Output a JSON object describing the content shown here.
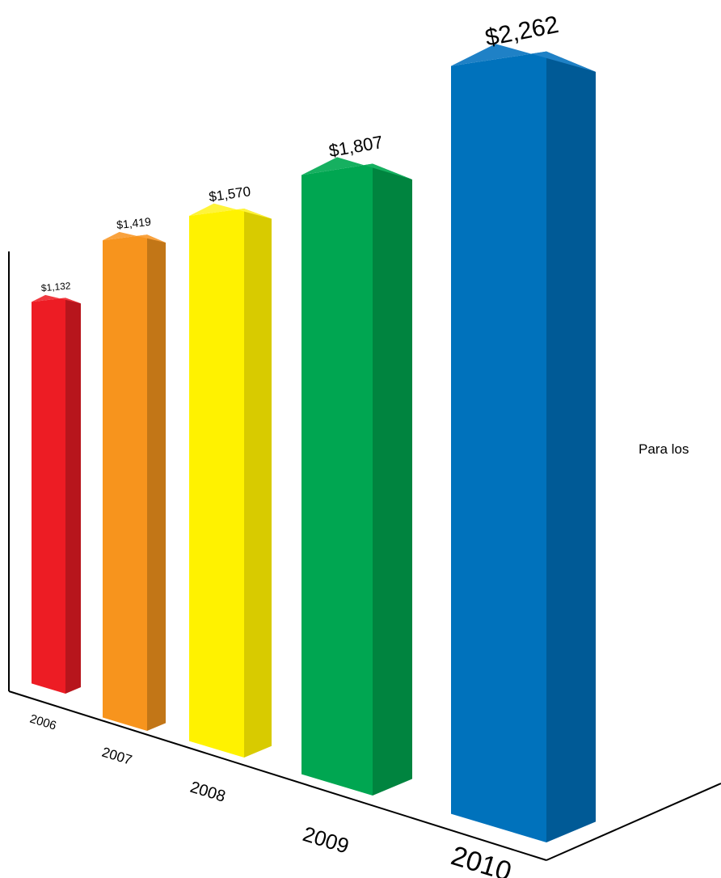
{
  "chart_data": {
    "type": "bar",
    "title": "",
    "xlabel": "",
    "ylabel": "",
    "categories": [
      "2006",
      "2007",
      "2008",
      "2009",
      "2010"
    ],
    "values": [
      1132,
      1419,
      1570,
      1807,
      2262
    ],
    "value_labels": [
      "$1,132",
      "$1,419",
      "$1,570",
      "$1,807",
      "$2,262"
    ],
    "colors": [
      {
        "front": "#ed1c24",
        "side": "#b7151c",
        "top": "#f03a40"
      },
      {
        "front": "#f7941d",
        "side": "#c27617",
        "top": "#f9a23e"
      },
      {
        "front": "#fff200",
        "side": "#d8cb00",
        "top": "#fff43a"
      },
      {
        "front": "#00a651",
        "side": "#00843f",
        "top": "#16b060"
      },
      {
        "front": "#0072bc",
        "side": "#005a96",
        "top": "#1f81c6"
      }
    ],
    "grid": false,
    "legend": "none",
    "perspective": "3d"
  },
  "side_text": "Para los"
}
